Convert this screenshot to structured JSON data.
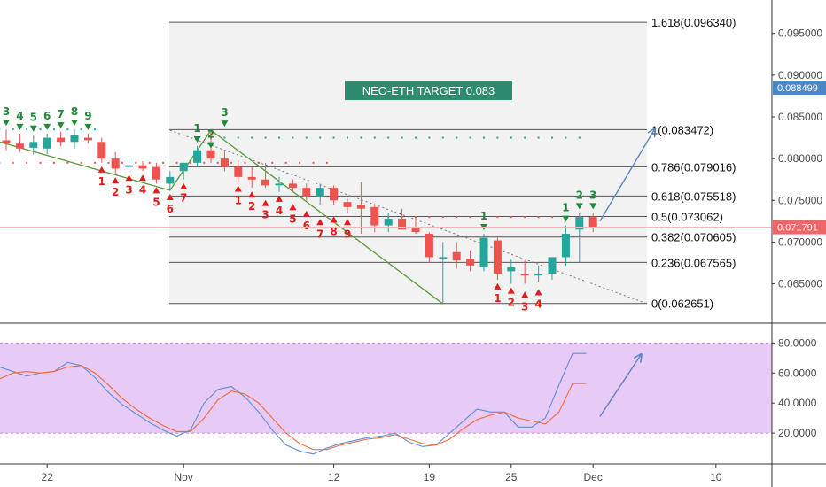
{
  "chart_data": [
    {
      "type": "candlestick",
      "title": "NEO-ETH TARGET 0.083",
      "ylim": [
        0.0605,
        0.099
      ],
      "y_ticks": [
        {
          "value": 0.065,
          "label": "0.065000"
        },
        {
          "value": 0.07,
          "label": "0.070000"
        },
        {
          "value": 0.075,
          "label": "0.075000"
        },
        {
          "value": 0.08,
          "label": "0.080000"
        },
        {
          "value": 0.085,
          "label": "0.085000"
        },
        {
          "value": 0.09,
          "label": "0.090000"
        },
        {
          "value": 0.095,
          "label": "0.095000"
        }
      ],
      "x_ticks": [
        {
          "t": 3,
          "label": "22"
        },
        {
          "t": 13,
          "label": "Nov"
        },
        {
          "t": 24,
          "label": "12"
        },
        {
          "t": 31,
          "label": "19"
        },
        {
          "t": 37,
          "label": "25"
        },
        {
          "t": 43,
          "label": "Dec"
        },
        {
          "t": 52,
          "label": "10"
        }
      ],
      "price_badges": [
        {
          "value": 0.088499,
          "label": "0.088499",
          "color": "#4a86c8"
        },
        {
          "value": 0.071791,
          "label": "0.071791",
          "color": "#f06565"
        }
      ],
      "fib_levels": [
        {
          "ratio": "1.618",
          "value": 0.09634,
          "label": "1.618(0.096340)"
        },
        {
          "ratio": "1",
          "value": 0.083472,
          "label": "1(0.083472)"
        },
        {
          "ratio": "0.786",
          "value": 0.079016,
          "label": "0.786(0.079016)"
        },
        {
          "ratio": "0.618",
          "value": 0.075518,
          "label": "0.618(0.075518)"
        },
        {
          "ratio": "0.5",
          "value": 0.073062,
          "label": "0.5(0.073062)"
        },
        {
          "ratio": "0.382",
          "value": 0.070605,
          "label": "0.382(0.070605)"
        },
        {
          "ratio": "0.236",
          "value": 0.067565,
          "label": "0.236(0.067565)"
        },
        {
          "ratio": "0",
          "value": 0.062651,
          "label": "0(0.062651)"
        }
      ],
      "candles": [
        {
          "t": 0,
          "o": 0.0822,
          "h": 0.0835,
          "l": 0.081,
          "c": 0.0818
        },
        {
          "t": 1,
          "o": 0.0818,
          "h": 0.083,
          "l": 0.0808,
          "c": 0.0812
        },
        {
          "t": 2,
          "o": 0.0813,
          "h": 0.0828,
          "l": 0.0805,
          "c": 0.082
        },
        {
          "t": 3,
          "o": 0.0812,
          "h": 0.083,
          "l": 0.0805,
          "c": 0.0825
        },
        {
          "t": 4,
          "o": 0.0825,
          "h": 0.0832,
          "l": 0.0815,
          "c": 0.082
        },
        {
          "t": 5,
          "o": 0.082,
          "h": 0.0835,
          "l": 0.0812,
          "c": 0.0828
        },
        {
          "t": 6,
          "o": 0.0825,
          "h": 0.083,
          "l": 0.0818,
          "c": 0.0822
        },
        {
          "t": 7,
          "o": 0.082,
          "h": 0.0825,
          "l": 0.0795,
          "c": 0.08
        },
        {
          "t": 8,
          "o": 0.08,
          "h": 0.0808,
          "l": 0.0782,
          "c": 0.0788
        },
        {
          "t": 9,
          "o": 0.079,
          "h": 0.08,
          "l": 0.0785,
          "c": 0.0792
        },
        {
          "t": 10,
          "o": 0.0792,
          "h": 0.0797,
          "l": 0.0785,
          "c": 0.0788
        },
        {
          "t": 11,
          "o": 0.079,
          "h": 0.0795,
          "l": 0.077,
          "c": 0.0775
        },
        {
          "t": 12,
          "o": 0.077,
          "h": 0.0785,
          "l": 0.0762,
          "c": 0.0778
        },
        {
          "t": 13,
          "o": 0.0785,
          "h": 0.0795,
          "l": 0.0775,
          "c": 0.0795
        },
        {
          "t": 14,
          "o": 0.0795,
          "h": 0.0815,
          "l": 0.079,
          "c": 0.081
        },
        {
          "t": 15,
          "o": 0.081,
          "h": 0.0834,
          "l": 0.0795,
          "c": 0.08
        },
        {
          "t": 16,
          "o": 0.08,
          "h": 0.081,
          "l": 0.0785,
          "c": 0.079
        },
        {
          "t": 17,
          "o": 0.079,
          "h": 0.0798,
          "l": 0.0772,
          "c": 0.0778
        },
        {
          "t": 18,
          "o": 0.0778,
          "h": 0.079,
          "l": 0.0765,
          "c": 0.0775
        },
        {
          "t": 19,
          "o": 0.0775,
          "h": 0.0795,
          "l": 0.0765,
          "c": 0.0768
        },
        {
          "t": 20,
          "o": 0.0768,
          "h": 0.0778,
          "l": 0.076,
          "c": 0.077
        },
        {
          "t": 21,
          "o": 0.077,
          "h": 0.0775,
          "l": 0.076,
          "c": 0.0765
        },
        {
          "t": 22,
          "o": 0.0765,
          "h": 0.077,
          "l": 0.075,
          "c": 0.0755
        },
        {
          "t": 23,
          "o": 0.0755,
          "h": 0.077,
          "l": 0.0745,
          "c": 0.0765
        },
        {
          "t": 24,
          "o": 0.0765,
          "h": 0.0768,
          "l": 0.0745,
          "c": 0.075
        },
        {
          "t": 25,
          "o": 0.0748,
          "h": 0.0752,
          "l": 0.0735,
          "c": 0.0742
        },
        {
          "t": 26,
          "o": 0.0745,
          "h": 0.0772,
          "l": 0.071,
          "c": 0.074
        },
        {
          "t": 27,
          "o": 0.0742,
          "h": 0.0745,
          "l": 0.0712,
          "c": 0.072
        },
        {
          "t": 28,
          "o": 0.072,
          "h": 0.0735,
          "l": 0.0712,
          "c": 0.0728
        },
        {
          "t": 29,
          "o": 0.0728,
          "h": 0.074,
          "l": 0.0715,
          "c": 0.0715
        },
        {
          "t": 30,
          "o": 0.0718,
          "h": 0.073,
          "l": 0.071,
          "c": 0.0712
        },
        {
          "t": 31,
          "o": 0.071,
          "h": 0.0712,
          "l": 0.0675,
          "c": 0.0682
        },
        {
          "t": 32,
          "o": 0.068,
          "h": 0.07,
          "l": 0.0626,
          "c": 0.0682
        },
        {
          "t": 33,
          "o": 0.0688,
          "h": 0.07,
          "l": 0.0668,
          "c": 0.0678
        },
        {
          "t": 34,
          "o": 0.068,
          "h": 0.069,
          "l": 0.0665,
          "c": 0.0672
        },
        {
          "t": 35,
          "o": 0.067,
          "h": 0.071,
          "l": 0.0665,
          "c": 0.0705
        },
        {
          "t": 36,
          "o": 0.0702,
          "h": 0.0705,
          "l": 0.0655,
          "c": 0.0662
        },
        {
          "t": 37,
          "o": 0.0665,
          "h": 0.068,
          "l": 0.065,
          "c": 0.067
        },
        {
          "t": 38,
          "o": 0.0662,
          "h": 0.0678,
          "l": 0.065,
          "c": 0.066
        },
        {
          "t": 39,
          "o": 0.066,
          "h": 0.0672,
          "l": 0.0652,
          "c": 0.0662
        },
        {
          "t": 40,
          "o": 0.0662,
          "h": 0.068,
          "l": 0.0655,
          "c": 0.0682
        },
        {
          "t": 41,
          "o": 0.0682,
          "h": 0.072,
          "l": 0.0672,
          "c": 0.071
        },
        {
          "t": 42,
          "o": 0.0715,
          "h": 0.0735,
          "l": 0.0675,
          "c": 0.073
        },
        {
          "t": 43,
          "o": 0.073,
          "h": 0.0735,
          "l": 0.0712,
          "c": 0.0718
        }
      ],
      "zigzag_swings": [
        {
          "t": -0.5,
          "v": 0.082
        },
        {
          "t": 12,
          "v": 0.0762
        },
        {
          "t": 15,
          "v": 0.0834
        },
        {
          "t": 32,
          "v": 0.0626
        }
      ],
      "trend_line": {
        "start": {
          "t": 12,
          "v": 0.0834
        },
        "end": {
          "t": 47,
          "v": 0.0626
        }
      },
      "projection_arrow": {
        "start": {
          "t": 43.5,
          "v": 0.0725
        },
        "end": {
          "t": 47.5,
          "v": 0.0835
        }
      },
      "sequential_labels": [
        {
          "t": 0,
          "text": "3",
          "side": "above",
          "color": "green",
          "v": 0.0835
        },
        {
          "t": 1,
          "text": "4",
          "side": "above",
          "color": "green",
          "v": 0.083
        },
        {
          "t": 2,
          "text": "5",
          "side": "above",
          "color": "green",
          "v": 0.0828
        },
        {
          "t": 3,
          "text": "6",
          "side": "above",
          "color": "green",
          "v": 0.083
        },
        {
          "t": 4,
          "text": "7",
          "side": "above",
          "color": "green",
          "v": 0.0832
        },
        {
          "t": 5,
          "text": "8",
          "side": "above",
          "color": "green",
          "v": 0.0835
        },
        {
          "t": 6,
          "text": "9",
          "side": "above",
          "color": "green",
          "v": 0.083
        },
        {
          "t": 7,
          "text": "1",
          "side": "below",
          "color": "red",
          "v": 0.0795
        },
        {
          "t": 8,
          "text": "2",
          "side": "below",
          "color": "red",
          "v": 0.0782
        },
        {
          "t": 9,
          "text": "3",
          "side": "below",
          "color": "red",
          "v": 0.0785
        },
        {
          "t": 10,
          "text": "4",
          "side": "below",
          "color": "red",
          "v": 0.0785
        },
        {
          "t": 11,
          "text": "5",
          "side": "below",
          "color": "red",
          "v": 0.077
        },
        {
          "t": 12,
          "text": "6",
          "side": "below",
          "color": "red",
          "v": 0.0762
        },
        {
          "t": 13,
          "text": "7",
          "side": "below",
          "color": "red",
          "v": 0.0775
        },
        {
          "t": 14,
          "text": "1",
          "side": "above",
          "color": "green",
          "v": 0.0815
        },
        {
          "t": 15,
          "text": "2",
          "side": "above",
          "color": "green",
          "v": 0.0808
        },
        {
          "t": 16,
          "text": "3",
          "side": "above",
          "color": "green",
          "v": 0.0834
        },
        {
          "t": 17,
          "text": "1",
          "side": "below",
          "color": "red",
          "v": 0.0772
        },
        {
          "t": 18,
          "text": "2",
          "side": "below",
          "color": "red",
          "v": 0.0765
        },
        {
          "t": 19,
          "text": "3",
          "side": "below",
          "color": "red",
          "v": 0.0755
        },
        {
          "t": 20,
          "text": "4",
          "side": "below",
          "color": "red",
          "v": 0.076
        },
        {
          "t": 21,
          "text": "5",
          "side": "below",
          "color": "red",
          "v": 0.075
        },
        {
          "t": 22,
          "text": "6",
          "side": "below",
          "color": "red",
          "v": 0.0742
        },
        {
          "t": 23,
          "text": "7",
          "side": "below",
          "color": "red",
          "v": 0.0732
        },
        {
          "t": 24,
          "text": "8",
          "side": "below",
          "color": "red",
          "v": 0.0735
        },
        {
          "t": 25,
          "text": "9",
          "side": "below",
          "color": "red",
          "v": 0.0732
        },
        {
          "t": 35,
          "text": "1",
          "side": "above",
          "color": "green",
          "v": 0.071
        },
        {
          "t": 36,
          "text": "1",
          "side": "below",
          "color": "red",
          "v": 0.0655
        },
        {
          "t": 37,
          "text": "2",
          "side": "below",
          "color": "red",
          "v": 0.065
        },
        {
          "t": 38,
          "text": "3",
          "side": "below",
          "color": "red",
          "v": 0.0645
        },
        {
          "t": 39,
          "text": "4",
          "side": "below",
          "color": "red",
          "v": 0.0648
        },
        {
          "t": 41,
          "text": "1",
          "side": "above",
          "color": "green",
          "v": 0.072
        },
        {
          "t": 42,
          "text": "2",
          "side": "above",
          "color": "green",
          "v": 0.0735
        },
        {
          "t": 43,
          "text": "3",
          "side": "above",
          "color": "green",
          "v": 0.0735
        }
      ],
      "resistance_dots": [
        {
          "from": -0.5,
          "to": 6.5,
          "v": 0.0835
        },
        {
          "from": 14,
          "to": 42,
          "v": 0.0825
        }
      ],
      "support_dots": [
        {
          "from": -0.5,
          "to": 23.5,
          "v": 0.0795
        },
        {
          "from": 27,
          "to": 42,
          "v": 0.073
        }
      ],
      "colors": {
        "up": "#26a69a",
        "down": "#ef5350",
        "zigzag": "#5a9a3a",
        "projection": "#5b84c4",
        "fib_area": "#f2f2f2",
        "fib_line": "#555555",
        "title_bg": "#2e8b6f",
        "green_label": "#1e8a3a",
        "red_label": "#e21b1b"
      }
    },
    {
      "type": "line",
      "ylim": [
        0,
        92
      ],
      "y_ticks": [
        {
          "value": 20,
          "label": "20.0000"
        },
        {
          "value": 40,
          "label": "40.0000"
        },
        {
          "value": 60,
          "label": "60.0000"
        },
        {
          "value": 80,
          "label": "80.0000"
        }
      ],
      "band": [
        20,
        80
      ],
      "x": [
        -0.5,
        0.5,
        1.5,
        2.5,
        3.5,
        4.5,
        5.5,
        6.5,
        7.5,
        8.5,
        9.5,
        10.5,
        11.5,
        12.5,
        13.5,
        14.5,
        15.5,
        16.5,
        17.5,
        18.5,
        19.5,
        20.5,
        21.5,
        22.5,
        23.5,
        24.5,
        25.5,
        26.5,
        27.5,
        28.5,
        29.5,
        30.5,
        31.5,
        32.5,
        33.5,
        34.5,
        35.5,
        36.5,
        37.5,
        38.5,
        39.5,
        40.5,
        41.5,
        42.5
      ],
      "series": [
        {
          "color": "#5b8fd6",
          "values": [
            64,
            61,
            58,
            60,
            61,
            67,
            65,
            57,
            47,
            39,
            33,
            27,
            22,
            18,
            22,
            40,
            49,
            51,
            44,
            34,
            22,
            12,
            8,
            6,
            10,
            13,
            15,
            17,
            18,
            20,
            14,
            11,
            12,
            20,
            28,
            36,
            34,
            34,
            24,
            24,
            30,
            52,
            73,
            73
          ]
        },
        {
          "color": "#ee6b3b",
          "values": [
            56,
            60,
            61,
            60,
            61,
            64,
            65,
            60,
            52,
            43,
            36,
            30,
            25,
            21,
            21,
            30,
            42,
            48,
            46,
            40,
            30,
            20,
            13,
            9,
            9,
            12,
            14,
            16,
            17,
            19,
            16,
            13,
            12,
            16,
            23,
            29,
            32,
            34,
            30,
            28,
            26,
            34,
            53,
            53
          ]
        }
      ],
      "arrow": {
        "start": {
          "t": 43.5,
          "v": 31
        },
        "end": {
          "t": 46.5,
          "v": 72
        }
      },
      "colors": {
        "band": "#e8caf6",
        "band_edge": "#b98bd0"
      }
    }
  ]
}
